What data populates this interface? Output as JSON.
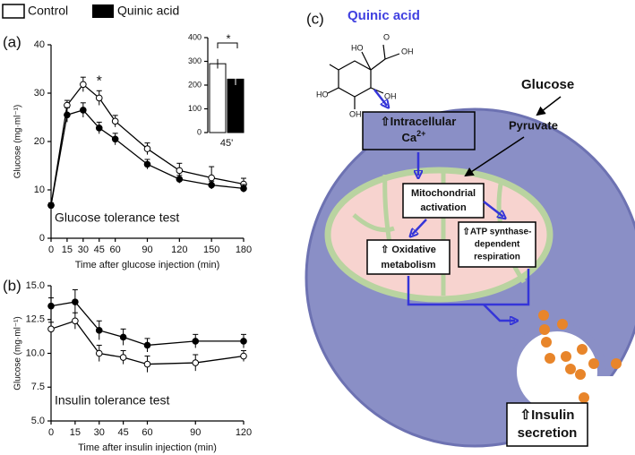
{
  "chart_data": [
    {
      "type": "line",
      "panel": "(a)",
      "title": "Glucose tolerance test",
      "xlabel": "Time after glucose injection (min)",
      "ylabel": "Glucose (mg·ml⁻¹)",
      "x": [
        0,
        15,
        30,
        45,
        60,
        90,
        120,
        150,
        180
      ],
      "xlim": [
        0,
        180
      ],
      "xticks": [
        0,
        15,
        30,
        45,
        60,
        90,
        120,
        150,
        180
      ],
      "ylim": [
        0,
        40
      ],
      "yticks": [
        0,
        10,
        20,
        30,
        40
      ],
      "annotations": [
        "*"
      ],
      "series": [
        {
          "name": "Control",
          "color": "#ffffff",
          "values": [
            6.8,
            27.5,
            31.8,
            29,
            24.2,
            18.5,
            14,
            12.5,
            11.2
          ],
          "errors": [
            0.5,
            1,
            1.5,
            1.5,
            1.2,
            1.2,
            1.5,
            2.3,
            1.2
          ]
        },
        {
          "name": "Quinic acid",
          "color": "#000000",
          "values": [
            6.8,
            25.5,
            26.5,
            22.8,
            20.5,
            15.3,
            12.2,
            11,
            10.3
          ],
          "errors": [
            0.5,
            1.5,
            1.5,
            1.2,
            1.2,
            1,
            0.8,
            0.8,
            0.8
          ]
        }
      ]
    },
    {
      "type": "bar",
      "categories": [
        "45'"
      ],
      "ylim": [
        0,
        400
      ],
      "yticks": [
        0,
        100,
        200,
        300,
        400
      ],
      "annotations": [
        "*"
      ],
      "series": [
        {
          "name": "Control",
          "color": "#ffffff",
          "values": [
            290
          ],
          "errors": [
            20
          ]
        },
        {
          "name": "Quinic acid",
          "color": "#000000",
          "values": [
            225
          ],
          "errors": [
            25
          ]
        }
      ]
    },
    {
      "type": "line",
      "panel": "(b)",
      "title": "Insulin tolerance test",
      "xlabel": "Time after insulin injection (min)",
      "ylabel": "Glucose (mg·ml⁻¹)",
      "x": [
        0,
        15,
        30,
        45,
        60,
        90,
        120
      ],
      "xlim": [
        0,
        120
      ],
      "xticks": [
        0,
        15,
        30,
        45,
        60,
        90,
        120
      ],
      "ylim": [
        5,
        15
      ],
      "yticks": [
        {
          "value": 5,
          "label": "5.0"
        },
        {
          "value": 7.5,
          "label": "7.5"
        },
        {
          "value": 10,
          "label": "10.0"
        },
        {
          "value": 12.5,
          "label": "12.5"
        },
        {
          "value": 15,
          "label": "15.0"
        }
      ],
      "series": [
        {
          "name": "Control",
          "color": "#ffffff",
          "values": [
            11.8,
            12.4,
            10,
            9.7,
            9.2,
            9.3,
            9.8
          ],
          "errors": [
            0.5,
            0.6,
            0.6,
            0.5,
            0.6,
            0.6,
            0.4
          ]
        },
        {
          "name": "Quinic acid",
          "color": "#000000",
          "values": [
            13.5,
            13.8,
            11.7,
            11.2,
            10.6,
            10.9,
            10.9
          ],
          "errors": [
            0.6,
            0.9,
            0.7,
            0.6,
            0.5,
            0.5,
            0.5
          ]
        }
      ]
    }
  ],
  "diagram": {
    "panel": "(c)",
    "compound": "Quinic acid",
    "glucose": "Glucose",
    "pyruvate": "Pyruvate",
    "molecule_labels": [
      "O",
      "OH",
      "HO",
      "HO",
      "OH",
      "OH"
    ],
    "calcium": {
      "text": "⇧Intracellular",
      "ion": "Ca",
      "charge": "2+"
    },
    "mito": [
      "Mitochondrial",
      "activation"
    ],
    "oxidative": [
      "⇧ Oxidative",
      "metabolism"
    ],
    "atp": [
      "⇧ATP synthase-",
      "dependent",
      "respiration"
    ],
    "insulin": [
      "⇧Insulin",
      "secretion"
    ]
  }
}
